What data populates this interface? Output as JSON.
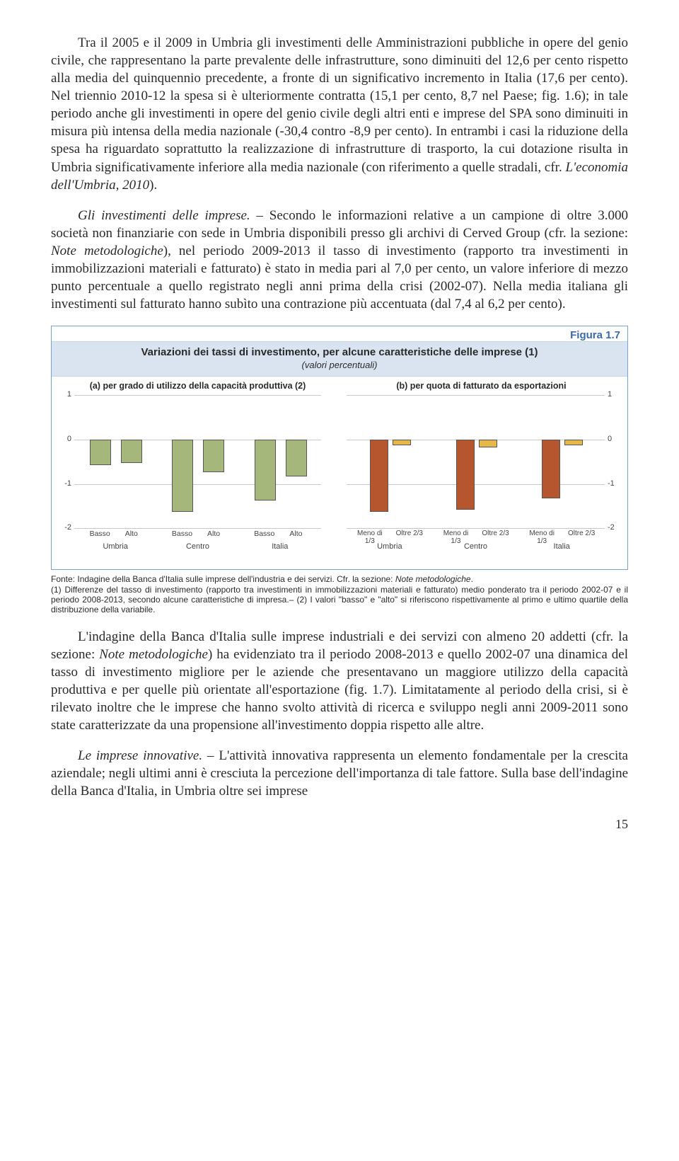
{
  "text": {
    "p1": "Tra il 2005 e il 2009 in Umbria gli investimenti delle Amministrazioni pubbliche in opere del genio civile, che rappresentano la parte prevalente delle infrastrutture, sono diminuiti del 12,6 per cento rispetto alla media del quinquennio precedente, a fronte di un significativo incremento in Italia (17,6 per cento). Nel triennio 2010-12 la spesa si è ulteriormente contratta (15,1 per cento, 8,7 nel Paese; fig. 1.6); in tale periodo anche gli investimenti in opere del genio civile degli altri enti e imprese del SPA sono diminuiti in misura più intensa della media nazionale (-30,4 contro -8,9 per cento). In entrambi i casi la riduzione della spesa ha riguardato soprattutto la realizzazione di infrastrutture di trasporto, la cui dotazione risulta in Umbria significativamente inferiore alla media nazionale (con riferimento a quelle stradali, cfr. ",
    "p1_it": "L'economia dell'Umbria, 2010",
    "p1_end": ").",
    "p2_lead": "Gli investimenti delle imprese.",
    "p2": " – Secondo le informazioni relative a un campione di oltre 3.000 società non finanziarie con sede in Umbria disponibili presso gli archivi di Cerved Group (cfr. la sezione: ",
    "p2_it": "Note metodologiche",
    "p2_b": "), nel periodo 2009-2013 il tasso di investimento (rapporto tra investimenti in immobilizzazioni materiali e fatturato) è stato in media pari al 7,0 per cento, un valore inferiore di mezzo punto percentuale a quello registrato negli anni prima della crisi (2002-07). Nella media italiana gli investimenti sul fatturato hanno subìto una contrazione più accentuata (dal 7,4 al 6,2 per cento).",
    "p3": "L'indagine della Banca d'Italia sulle imprese industriali e dei servizi con almeno 20 addetti (cfr. la sezione: ",
    "p3_it": "Note metodologiche",
    "p3_b": ") ha evidenziato tra il periodo 2008-2013 e quello 2002-07 una dinamica del tasso di investimento migliore per le aziende che presentavano un maggiore utilizzo della capacità produttiva e per quelle più orientate all'esportazione (fig. 1.7). Limitatamente al periodo della crisi, si è rilevato inoltre che le imprese che hanno svolto attività di ricerca e sviluppo negli anni 2009-2011 sono state caratterizzate da una propensione all'investimento doppia rispetto alle altre.",
    "p4_lead": "Le imprese innovative.",
    "p4": " – L'attività innovativa rappresenta un elemento fondamentale per la crescita aziendale; negli ultimi anni è cresciuta la percezione dell'importanza di tale fattore. Sulla base dell'indagine della Banca d'Italia, in Umbria oltre sei imprese"
  },
  "figure": {
    "label": "Figura 1.7",
    "title": "Variazioni dei tassi di investimento, per alcune caratteristiche delle imprese (1)",
    "subtitle": "(valori percentuali)",
    "panel_a_title": "(a) per grado di utilizzo della capacità produttiva (2)",
    "panel_b_title": "(b) per quota di fatturato da esportazioni",
    "ylim": [
      -2,
      1
    ],
    "yticks": [
      1,
      0,
      -1,
      -2
    ],
    "grid_color": "#c9c9c9",
    "background_color": "#ffffff",
    "panel_a": {
      "type": "bar",
      "color": "#a5b77a",
      "border_color": "#555555",
      "regions": [
        "Umbria",
        "Centro",
        "Italia"
      ],
      "categories": [
        "Basso",
        "Alto"
      ],
      "values": [
        [
          -0.55,
          -0.5
        ],
        [
          -1.6,
          -0.7
        ],
        [
          -1.35,
          -0.8
        ]
      ]
    },
    "panel_b": {
      "type": "bar",
      "color_a": "#b6562e",
      "color_b": "#e6b84a",
      "border_color": "#555555",
      "regions": [
        "Umbria",
        "Centro",
        "Italia"
      ],
      "categories": [
        "Meno di 1/3",
        "Oltre 2/3"
      ],
      "values": [
        [
          -1.6,
          -0.1
        ],
        [
          -1.55,
          -0.15
        ],
        [
          -1.3,
          -0.1
        ]
      ]
    }
  },
  "footnote": {
    "fonte_a": "Fonte: Indagine della Banca d'Italia sulle imprese dell'industria e dei servizi. Cfr. la sezione: ",
    "fonte_it": "Note metodologiche",
    "fonte_b": ".",
    "rest": "(1) Differenze del tasso di investimento (rapporto tra investimenti in immobilizzazioni materiali e fatturato) medio ponderato tra il periodo 2002-07 e il periodo 2008-2013, secondo alcune caratteristiche di impresa.– (2) I valori \"basso\" e \"alto\" si riferiscono rispettivamente al primo e ultimo quartile della distribuzione della variabile."
  },
  "pageNumber": "15"
}
